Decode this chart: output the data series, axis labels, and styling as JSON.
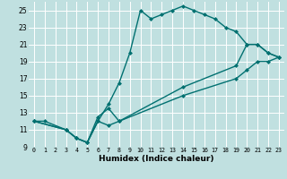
{
  "xlabel": "Humidex (Indice chaleur)",
  "bg_color": "#c0e0e0",
  "grid_color": "#ffffff",
  "line_color": "#007070",
  "xlim": [
    -0.5,
    23.5
  ],
  "ylim": [
    9,
    26
  ],
  "xticks": [
    0,
    1,
    2,
    3,
    4,
    5,
    6,
    7,
    8,
    9,
    10,
    11,
    12,
    13,
    14,
    15,
    16,
    17,
    18,
    19,
    20,
    21,
    22,
    23
  ],
  "yticks": [
    9,
    11,
    13,
    15,
    17,
    19,
    21,
    23,
    25
  ],
  "series1_x": [
    0,
    1,
    3,
    4,
    5,
    6,
    7,
    8,
    9,
    10,
    11,
    12,
    13,
    14,
    15,
    16,
    17,
    18,
    19,
    20,
    21,
    22,
    23
  ],
  "series1_y": [
    12,
    12,
    11,
    10,
    9.5,
    12,
    14,
    16.5,
    20,
    25,
    24,
    24.5,
    25,
    25.5,
    25,
    24.5,
    24,
    23,
    22.5,
    21,
    21,
    20,
    19.5
  ],
  "series2_x": [
    0,
    3,
    4,
    5,
    6,
    7,
    8,
    14,
    19,
    20,
    21,
    22,
    23
  ],
  "series2_y": [
    12,
    11,
    10,
    9.5,
    12,
    11.5,
    12,
    15,
    17,
    18,
    19,
    19,
    19.5
  ],
  "series3_x": [
    0,
    3,
    4,
    5,
    6,
    7,
    8,
    14,
    19,
    20,
    21,
    22,
    23
  ],
  "series3_y": [
    12,
    11,
    10,
    9.5,
    12.5,
    13.5,
    12,
    16,
    18.5,
    21,
    21,
    20,
    19.5
  ]
}
